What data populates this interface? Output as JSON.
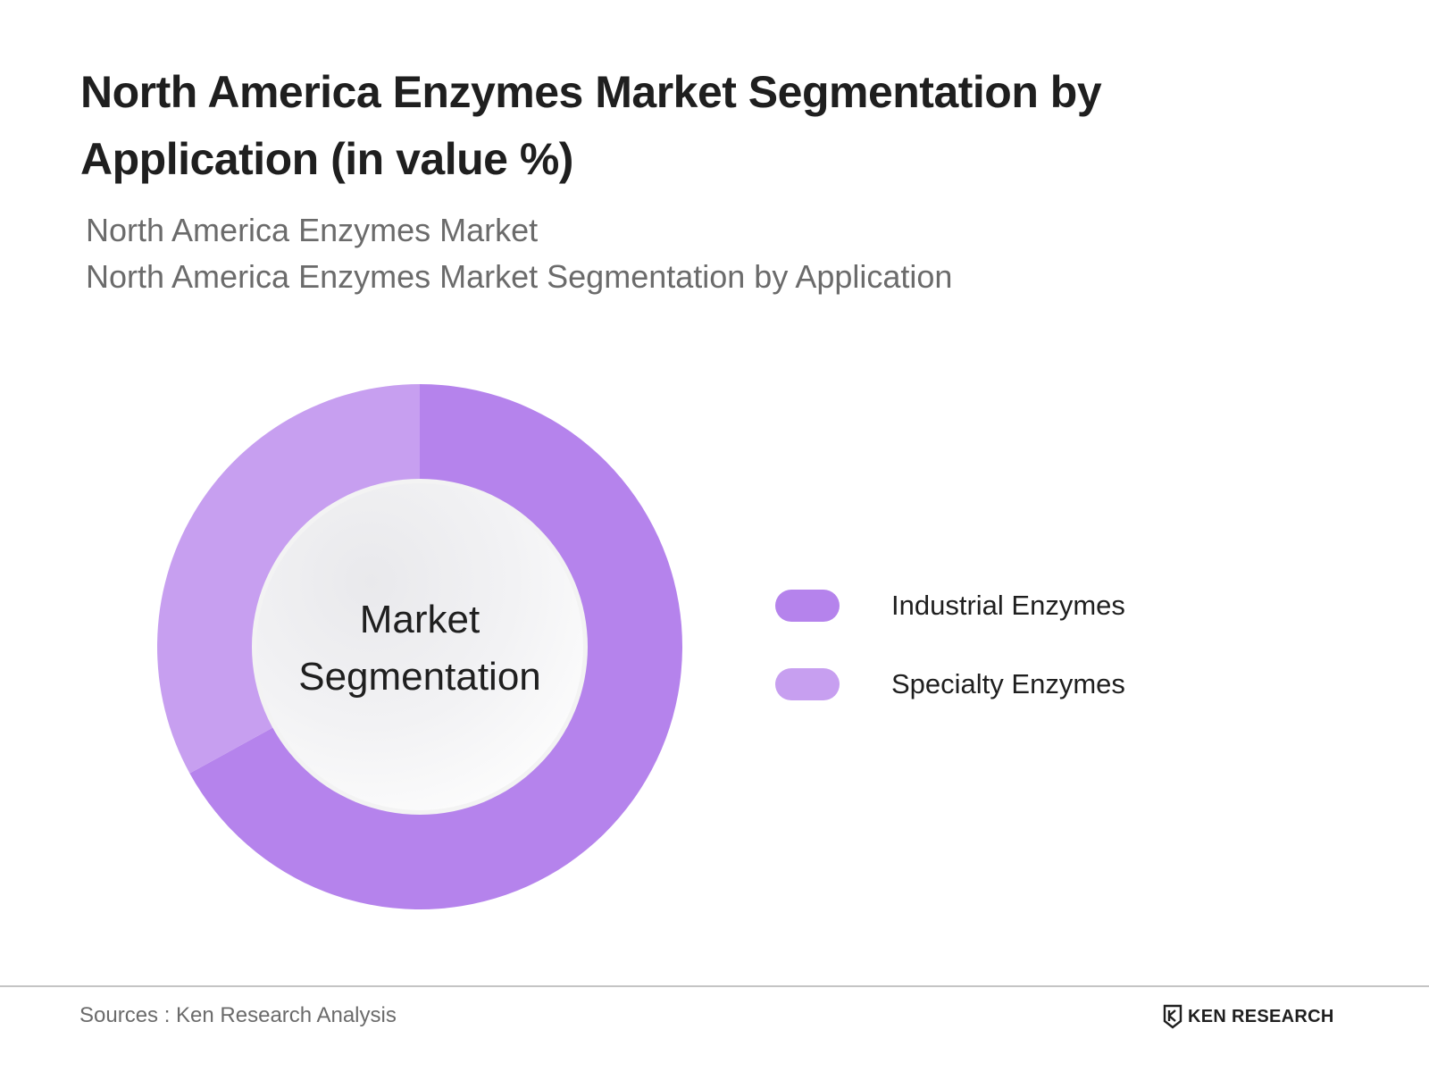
{
  "header": {
    "title": "North America Enzymes Market Segmentation by Application (in value %)",
    "subtitle_line1": "North America Enzymes Market",
    "subtitle_line2": "North America Enzymes Market Segmentation by Application"
  },
  "chart_data": {
    "type": "pie",
    "variant": "donut",
    "center_label_line1": "Market",
    "center_label_line2": "Segmentation",
    "legend_position": "right",
    "series": [
      {
        "name": "Industrial Enzymes",
        "value": 67,
        "color": "#b583ec"
      },
      {
        "name": "Specialty Enzymes",
        "value": 33,
        "color": "#c79ff0"
      }
    ]
  },
  "footer": {
    "source": "Sources : Ken Research Analysis",
    "brand": "KEN RESEARCH"
  }
}
